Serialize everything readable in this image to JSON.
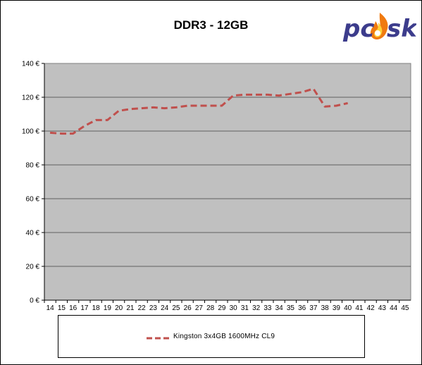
{
  "chart_data": {
    "type": "line",
    "title": "DDR3 - 12GB",
    "xlabel": "",
    "ylabel": "",
    "x_ticks": [
      "14",
      "15",
      "16",
      "17",
      "18",
      "19",
      "20",
      "21",
      "22",
      "23",
      "24",
      "25",
      "26",
      "27",
      "28",
      "29",
      "30",
      "31",
      "32",
      "33",
      "34",
      "35",
      "36",
      "37",
      "38",
      "39",
      "40",
      "41",
      "42",
      "43",
      "44",
      "45"
    ],
    "y_ticks": [
      "0 €",
      "20 €",
      "40 €",
      "60 €",
      "80 €",
      "100 €",
      "120 €",
      "140 €"
    ],
    "ylim": [
      0,
      140
    ],
    "grid": true,
    "legend_position": "bottom",
    "series": [
      {
        "name": "Kingston 3x4GB 1600MHz CL9",
        "color": "#c0504d",
        "line_style": "dashed",
        "x": [
          14,
          15,
          16,
          17,
          18,
          19,
          20,
          21,
          22,
          23,
          24,
          25,
          26,
          27,
          28,
          29,
          30,
          31,
          32,
          33,
          34,
          35,
          36,
          37,
          38,
          39,
          40
        ],
        "y": [
          99,
          98.5,
          98.5,
          103,
          106.5,
          106.5,
          112,
          113,
          113.5,
          114,
          113.5,
          114,
          115,
          115,
          115,
          115,
          121,
          121.5,
          121.5,
          121.5,
          121,
          122,
          123,
          125,
          114.5,
          115,
          116.5
        ]
      }
    ]
  },
  "branding": {
    "logo_text": "pcask",
    "logo_color": "#3c3c8c",
    "flame_color": "#f07a10"
  },
  "colors": {
    "plot_background": "#c0c0c0",
    "gridline": "#000000"
  }
}
